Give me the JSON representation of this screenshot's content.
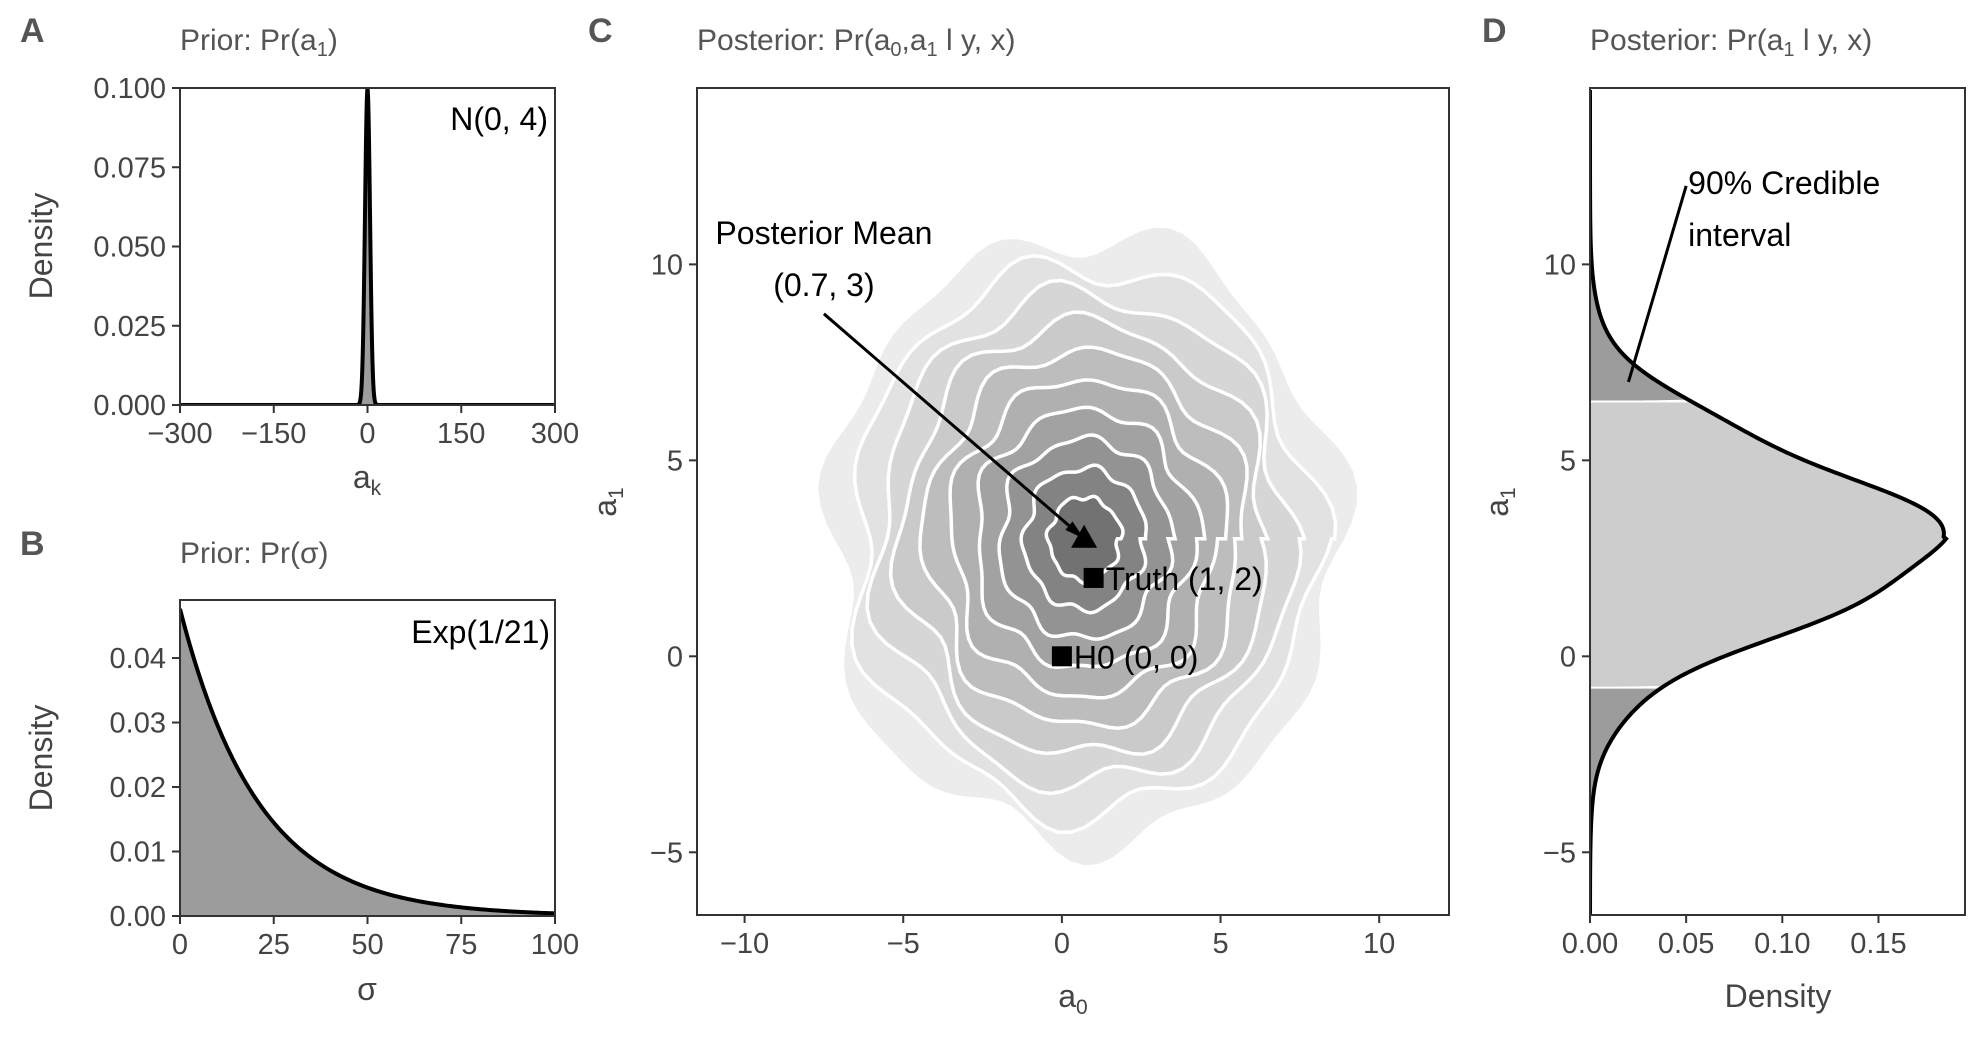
{
  "chart_data": [
    {
      "panel_letter": "A",
      "type": "area",
      "title_text": "Prior: Pr(a",
      "title_sub": "1",
      "title_end": ")",
      "xlabel": "a",
      "xlabel_sub": "k",
      "ylabel": "Density",
      "xlim": [
        -300,
        300
      ],
      "ylim": [
        0,
        0.1
      ],
      "xticks": [
        -300,
        -150,
        0,
        150,
        300
      ],
      "xtick_labels": [
        "−300",
        "−150",
        "0",
        "150",
        "300"
      ],
      "yticks": [
        0,
        0.025,
        0.05,
        0.075,
        0.1
      ],
      "ytick_labels": [
        "0.000",
        "0.025",
        "0.050",
        "0.075",
        "0.100"
      ],
      "annotation": "N(0, 4)",
      "distribution": {
        "family": "normal",
        "mean": 0,
        "sd": 4
      },
      "fill_color": "#9c9c9c"
    },
    {
      "panel_letter": "B",
      "type": "area",
      "title_text": "Prior: Pr(σ)",
      "xlabel": "σ",
      "ylabel": "Density",
      "xlim": [
        0,
        100
      ],
      "ylim": [
        0,
        0.049
      ],
      "xticks": [
        0,
        25,
        50,
        75,
        100
      ],
      "xtick_labels": [
        "0",
        "25",
        "50",
        "75",
        "100"
      ],
      "yticks": [
        0,
        0.01,
        0.02,
        0.03,
        0.04
      ],
      "ytick_labels": [
        "0.00",
        "0.01",
        "0.02",
        "0.03",
        "0.04"
      ],
      "annotation": "Exp(1/21)",
      "distribution": {
        "family": "exponential",
        "rate": 0.047619
      },
      "fill_color": "#9c9c9c"
    },
    {
      "panel_letter": "C",
      "type": "contour",
      "title_text": "Posterior: Pr(a",
      "title_sub": "0",
      "title_mid": ",a",
      "title_sub2": "1",
      "title_end": " l y, x)",
      "xlabel": "a",
      "xlabel_sub": "0",
      "ylabel": "a",
      "ylabel_sub": "1",
      "xlim": [
        -11.5,
        12.2
      ],
      "ylim": [
        -6.6,
        14.5
      ],
      "xticks": [
        -10,
        -5,
        0,
        5,
        10
      ],
      "xtick_labels": [
        "−10",
        "−5",
        "0",
        "5",
        "10"
      ],
      "yticks": [
        -5,
        0,
        5,
        10
      ],
      "ytick_labels": [
        "−5",
        "0",
        "5",
        "10"
      ],
      "density": {
        "center": [
          0.7,
          3.0
        ],
        "sd": [
          2.8,
          2.7
        ],
        "levels": 10
      },
      "points": [
        {
          "label": "Posterior Mean",
          "label2": "(0.7, 3)",
          "x": 0.7,
          "y": 3.0,
          "marker": "triangle"
        },
        {
          "label": "Truth (1, 2)",
          "x": 1.0,
          "y": 2.0,
          "marker": "square"
        },
        {
          "label": "H0 (0, 0)",
          "x": 0.0,
          "y": 0.0,
          "marker": "square"
        }
      ],
      "annotation_text_pos": [
        -7.5,
        9.3
      ]
    },
    {
      "panel_letter": "D",
      "type": "area",
      "orientation": "horizontal",
      "title_text": "Posterior: Pr(a",
      "title_sub": "1",
      "title_end": " l y, x)",
      "xlabel": "Density",
      "ylabel": "a",
      "ylabel_sub": "1",
      "xlim": [
        0,
        0.195
      ],
      "ylim": [
        -6.6,
        14.5
      ],
      "xticks": [
        0,
        0.05,
        0.1,
        0.15
      ],
      "xtick_labels": [
        "0.00",
        "0.05",
        "0.10",
        "0.15"
      ],
      "yticks": [
        -5,
        0,
        5,
        10
      ],
      "ytick_labels": [
        "−5",
        "0",
        "5",
        "10"
      ],
      "distribution": {
        "family": "normal",
        "mean": 3.0,
        "sd": 2.15,
        "peak_density": 0.185
      },
      "credible_interval": {
        "level": "90%",
        "lower": -0.8,
        "upper": 6.5
      },
      "annotation_line1": "90% Credible",
      "annotation_line2": "interval",
      "annotation_target": [
        0.02,
        7.0
      ],
      "annotation_text_pos": [
        0.05,
        12.0
      ],
      "ci_color": "#cdcdcd",
      "tail_color": "#9c9c9c"
    }
  ]
}
